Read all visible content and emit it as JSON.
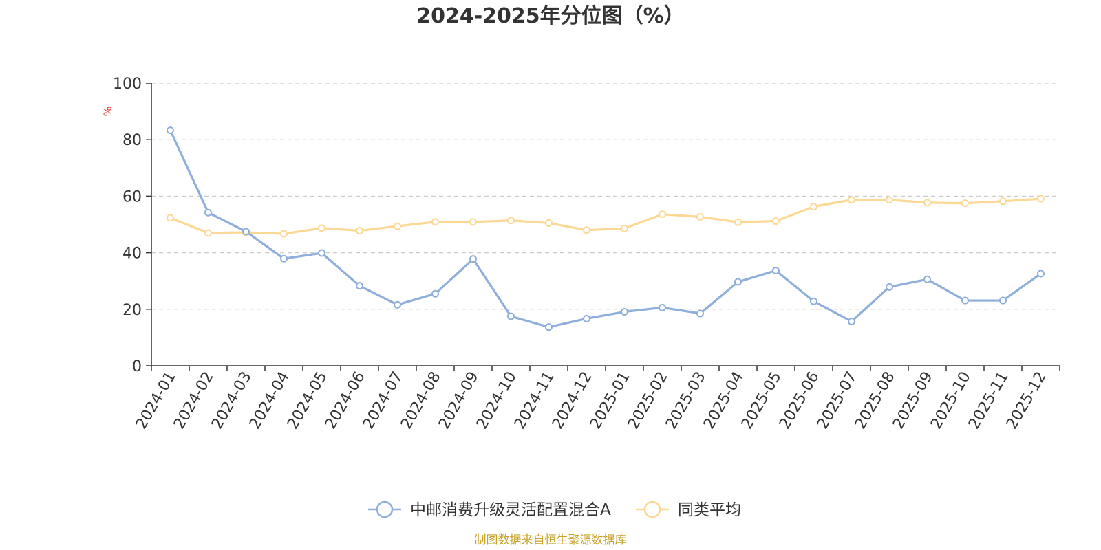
{
  "chart_data": {
    "type": "line",
    "title": "2024-2025年分位图（%）",
    "ylabel": "%",
    "xlabel": "",
    "ylim": [
      0,
      100
    ],
    "yticks": [
      0,
      20,
      40,
      60,
      80,
      100
    ],
    "grid": true,
    "legend_position": "bottom",
    "categories": [
      "2024-01",
      "2024-02",
      "2024-03",
      "2024-04",
      "2024-05",
      "2024-06",
      "2024-07",
      "2024-08",
      "2024-09",
      "2024-10",
      "2024-11",
      "2024-12",
      "2025-01",
      "2025-02",
      "2025-03",
      "2025-04",
      "2025-05",
      "2025-06",
      "2025-07",
      "2025-08",
      "2025-09",
      "2025-10",
      "2025-11",
      "2025-12"
    ],
    "series": [
      {
        "name": "中邮消费升级灵活配置混合A",
        "color": "#8eaedb",
        "values": [
          83.3,
          54.2,
          47.5,
          37.9,
          39.9,
          28.3,
          21.6,
          25.5,
          37.8,
          17.5,
          13.7,
          16.7,
          19.1,
          20.6,
          18.5,
          29.7,
          33.7,
          22.8,
          15.7,
          27.9,
          30.6,
          23.1,
          23.1,
          32.6
        ]
      },
      {
        "name": "同类平均",
        "color": "#fcd894",
        "values": [
          52.3,
          47.0,
          47.2,
          46.7,
          48.7,
          47.8,
          49.4,
          50.9,
          50.9,
          51.4,
          50.5,
          48.0,
          48.6,
          53.6,
          52.7,
          50.8,
          51.2,
          56.3,
          58.7,
          58.7,
          57.7,
          57.5,
          58.2,
          59.1
        ]
      }
    ]
  },
  "source": "制图数据来自恒生聚源数据库",
  "colors": {
    "axis": "#333333",
    "grid": "#cccccc",
    "unit": "#e53935",
    "source": "#c9a227"
  }
}
